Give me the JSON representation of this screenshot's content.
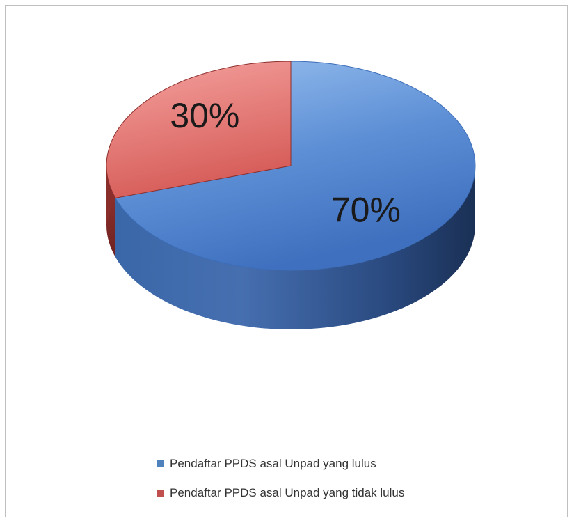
{
  "chart_data": {
    "type": "pie",
    "title": "",
    "slices": [
      {
        "label": "Pendaftar PPDS asal Unpad yang lulus",
        "value": 70,
        "display": "70%",
        "color": "#4f81bd"
      },
      {
        "label": "Pendaftar PPDS asal Unpad yang tidak lulus",
        "value": 30,
        "display": "30%",
        "color": "#c0504d"
      }
    ],
    "legend_position": "bottom",
    "style": "3d"
  }
}
